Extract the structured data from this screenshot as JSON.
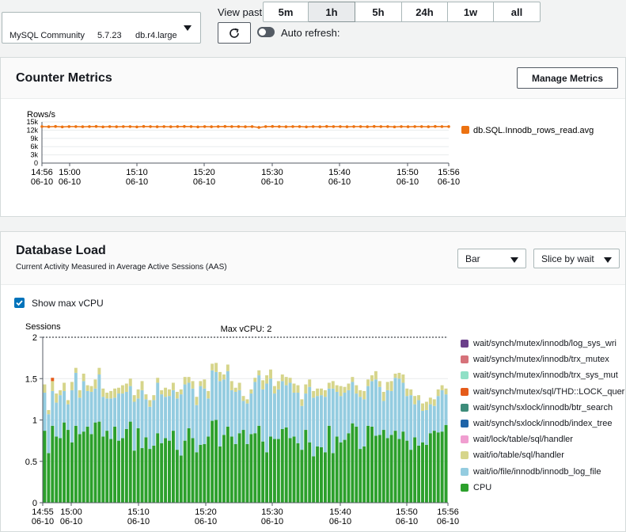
{
  "instance": {
    "engine": "MySQL Community",
    "version": "5.7.23",
    "class": "db.r4.large"
  },
  "toolbar": {
    "view_past_label": "View past",
    "ranges": [
      {
        "label": "5m",
        "active": false
      },
      {
        "label": "1h",
        "active": true
      },
      {
        "label": "5h",
        "active": false
      },
      {
        "label": "24h",
        "active": false
      },
      {
        "label": "1w",
        "active": false
      },
      {
        "label": "all",
        "active": false
      }
    ],
    "auto_refresh_label": "Auto refresh:",
    "auto_refresh_on": false
  },
  "counter": {
    "title": "Counter Metrics",
    "manage_label": "Manage Metrics"
  },
  "load": {
    "title": "Database Load",
    "subtitle": "Current Activity Measured in Average Active Sessions (AAS)",
    "chart_type_value": "Bar",
    "slice_value": "Slice by wait",
    "show_max_vcpu_label": "Show max vCPU",
    "show_max_vcpu_checked": true
  },
  "chart_data": [
    {
      "type": "line",
      "ylabel": "Rows/s",
      "yticks": [
        "15k",
        "12k",
        "9k",
        "6k",
        "3k",
        "0"
      ],
      "ylim": [
        0,
        15000
      ],
      "xticks": [
        [
          "14:56",
          "06-10"
        ],
        [
          "15:00",
          "06-10"
        ],
        [
          "15:10",
          "06-10"
        ],
        [
          "15:20",
          "06-10"
        ],
        [
          "15:30",
          "06-10"
        ],
        [
          "15:40",
          "06-10"
        ],
        [
          "15:50",
          "06-10"
        ],
        [
          "15:56",
          "06-10"
        ]
      ],
      "series": [
        {
          "name": "db.SQL.Innodb_rows_read.avg",
          "color": "#ec7211",
          "values": [
            13300,
            13250,
            13350,
            13200,
            13300,
            13300,
            13250,
            13300,
            13350,
            13200,
            13300,
            13250,
            13300,
            13300,
            13200,
            13350,
            13300,
            13250,
            13300,
            13250,
            13300,
            13350,
            13300,
            13200,
            13300,
            13250,
            13300,
            13350,
            13300,
            13300,
            13250,
            13300,
            13000,
            13300,
            13350,
            13300,
            13250,
            13300,
            13300,
            13200,
            13300,
            13250,
            13350,
            13300,
            13300,
            13250,
            13300,
            13300,
            13250,
            13350,
            13300,
            13300,
            13200,
            13300,
            13250,
            13300,
            13300,
            13250,
            13350,
            13300,
            13300
          ]
        }
      ]
    },
    {
      "type": "bar",
      "stacked": true,
      "ylabel": "Sessions",
      "annotation": "Max vCPU: 2",
      "max_vcpu": 2,
      "yticks": [
        "2",
        "1.5",
        "1",
        "0.5",
        "0"
      ],
      "ylim": [
        0,
        2
      ],
      "xticks": [
        [
          "14:55",
          "06-10"
        ],
        [
          "15:00",
          "06-10"
        ],
        [
          "15:10",
          "06-10"
        ],
        [
          "15:20",
          "06-10"
        ],
        [
          "15:30",
          "06-10"
        ],
        [
          "15:40",
          "06-10"
        ],
        [
          "15:50",
          "06-10"
        ],
        [
          "15:56",
          "06-10"
        ]
      ],
      "legend": [
        {
          "name": "wait/synch/mutex/innodb/log_sys_wri",
          "color": "#6b3f8a"
        },
        {
          "name": "wait/synch/mutex/innodb/trx_mutex",
          "color": "#d6727a"
        },
        {
          "name": "wait/synch/mutex/innodb/trx_sys_mut",
          "color": "#8fe0c6"
        },
        {
          "name": "wait/synch/mutex/sql/THD::LOCK_quer",
          "color": "#e55b1a"
        },
        {
          "name": "wait/synch/sxlock/innodb/btr_search",
          "color": "#3d8c7a"
        },
        {
          "name": "wait/synch/sxlock/innodb/index_tree",
          "color": "#1f64a8"
        },
        {
          "name": "wait/lock/table/sql/handler",
          "color": "#f09ed0"
        },
        {
          "name": "wait/io/table/sql/handler",
          "color": "#d6d58b"
        },
        {
          "name": "wait/io/file/innodb/innodb_log_file",
          "color": "#94cce0"
        },
        {
          "name": "CPU",
          "color": "#2ca02c"
        }
      ],
      "series": [
        {
          "name": "CPU",
          "values": [
            0.87,
            0.6,
            0.93,
            0.8,
            0.78,
            0.97,
            0.88,
            0.73,
            0.93,
            0.83,
            0.86,
            0.92,
            0.83,
            0.97,
            0.98,
            0.8,
            0.87,
            0.77,
            0.92,
            0.75,
            0.78,
            0.89,
            0.98,
            0.63,
            0.9,
            0.66,
            0.79,
            0.65,
            0.69,
            0.84,
            0.72,
            0.78,
            0.75,
            0.87,
            0.64,
            0.57,
            0.75,
            0.9,
            0.78,
            0.61,
            0.7,
            0.71,
            0.8,
            0.99,
            1.0,
            0.68,
            0.82,
            0.92,
            0.8,
            0.71,
            0.84,
            0.88,
            0.71,
            0.83,
            0.84,
            0.93,
            0.74,
            0.61,
            0.8,
            0.77,
            0.77,
            0.89,
            0.91,
            0.78,
            0.8,
            0.72,
            0.64,
            0.88,
            0.73,
            0.56,
            0.68,
            0.67,
            0.61,
            0.93,
            0.6,
            0.8,
            0.73,
            0.76,
            0.84,
            0.96,
            0.92,
            0.65,
            0.68,
            0.93,
            0.92,
            0.81,
            0.82,
            0.88,
            0.78,
            0.82,
            0.87,
            0.77,
            0.86,
            0.75,
            0.64,
            0.79,
            0.69,
            0.73,
            0.7,
            0.84,
            0.87,
            0.85,
            0.86,
            0.94
          ]
        },
        {
          "name": "wait/io/file/innodb/innodb_log_file",
          "values": [
            0.46,
            0.47,
            0.42,
            0.41,
            0.52,
            0.38,
            0.31,
            0.63,
            0.64,
            0.44,
            0.61,
            0.43,
            0.51,
            0.41,
            0.57,
            0.48,
            0.39,
            0.49,
            0.35,
            0.57,
            0.54,
            0.45,
            0.43,
            0.59,
            0.36,
            0.7,
            0.46,
            0.51,
            0.55,
            0.61,
            0.59,
            0.5,
            0.54,
            0.49,
            0.62,
            0.74,
            0.68,
            0.55,
            0.6,
            0.57,
            0.71,
            0.67,
            0.46,
            0.61,
            0.58,
            0.79,
            0.67,
            0.67,
            0.56,
            0.63,
            0.52,
            0.35,
            0.49,
            0.49,
            0.62,
            0.61,
            0.63,
            0.83,
            0.7,
            0.55,
            0.6,
            0.58,
            0.51,
            0.67,
            0.53,
            0.61,
            0.53,
            0.44,
            0.67,
            0.71,
            0.61,
            0.63,
            0.67,
            0.45,
            0.78,
            0.54,
            0.56,
            0.57,
            0.52,
            0.5,
            0.4,
            0.63,
            0.57,
            0.48,
            0.55,
            0.68,
            0.58,
            0.35,
            0.58,
            0.53,
            0.64,
            0.73,
            0.59,
            0.54,
            0.66,
            0.4,
            0.55,
            0.38,
            0.42,
            0.35,
            0.3,
            0.44,
            0.5,
            0.37
          ]
        },
        {
          "name": "wait/io/table/sql/handler",
          "values": [
            0.1,
            0.05,
            0.12,
            0.11,
            0.06,
            0.1,
            0.05,
            0.1,
            0.06,
            0.09,
            0.09,
            0.07,
            0.07,
            0.11,
            0.08,
            0.1,
            0.07,
            0.09,
            0.11,
            0.07,
            0.1,
            0.1,
            0.09,
            0.08,
            0.11,
            0.11,
            0.06,
            0.08,
            0.06,
            0.06,
            0.05,
            0.11,
            0.08,
            0.09,
            0.08,
            0.06,
            0.09,
            0.07,
            0.09,
            0.1,
            0.06,
            0.11,
            0.09,
            0.08,
            0.11,
            0.11,
            0.06,
            0.08,
            0.11,
            0.05,
            0.09,
            0.06,
            0.05,
            0.05,
            0.05,
            0.06,
            0.11,
            0.1,
            0.11,
            0.09,
            0.1,
            0.08,
            0.1,
            0.06,
            0.11,
            0.09,
            0.08,
            0.11,
            0.09,
            0.08,
            0.09,
            0.08,
            0.08,
            0.07,
            0.09,
            0.08,
            0.12,
            0.07,
            0.08,
            0.06,
            0.1,
            0.08,
            0.1,
            0.08,
            0.07,
            0.1,
            0.07,
            0.11,
            0.1,
            0.12,
            0.05,
            0.07,
            0.1,
            0.09,
            0.07,
            0.1,
            0.06,
            0.09,
            0.1,
            0.08,
            0.08,
            0.08,
            0.06,
            0.07
          ]
        },
        {
          "name": "wait/synch/mutex/sql/THD::LOCK_quer",
          "values": [
            0,
            0,
            0.04,
            0,
            0,
            0,
            0,
            0,
            0,
            0,
            0,
            0,
            0,
            0,
            0,
            0,
            0,
            0,
            0,
            0,
            0,
            0,
            0,
            0,
            0,
            0,
            0,
            0,
            0,
            0,
            0,
            0,
            0,
            0,
            0,
            0,
            0,
            0,
            0,
            0,
            0,
            0,
            0,
            0,
            0,
            0,
            0,
            0,
            0,
            0,
            0,
            0,
            0,
            0,
            0,
            0,
            0,
            0,
            0,
            0,
            0,
            0,
            0,
            0,
            0,
            0,
            0,
            0,
            0,
            0,
            0,
            0,
            0,
            0,
            0,
            0,
            0,
            0,
            0,
            0,
            0,
            0,
            0,
            0,
            0,
            0,
            0,
            0,
            0,
            0,
            0,
            0,
            0,
            0,
            0,
            0,
            0,
            0,
            0,
            0,
            0,
            0,
            0,
            0
          ]
        }
      ]
    }
  ]
}
